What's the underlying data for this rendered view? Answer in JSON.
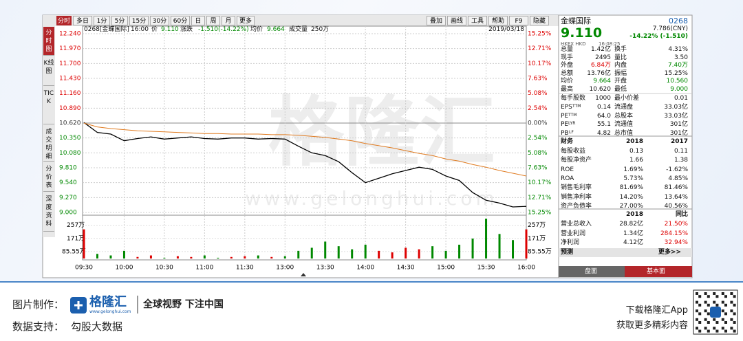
{
  "toolbar": {
    "tabs": [
      "分时",
      "多日",
      "1分",
      "5分",
      "15分",
      "30分",
      "60分",
      "日",
      "周",
      "月",
      "更多"
    ],
    "tools": [
      "叠加",
      "画线",
      "工具",
      "帮助",
      "F9",
      "隐藏"
    ]
  },
  "side_tabs": [
    "分时图",
    "K线图",
    "TICK",
    "成交明细",
    "分价表",
    "深度资料"
  ],
  "info": {
    "code": "0268[金蝶国际]",
    "time": "16:00",
    "price_label": "价",
    "price": "9.110",
    "change_label": "涨跌",
    "change": "-1.510(-14.22%)",
    "avg_label": "均价",
    "avg": "9.664",
    "vol_label": "成交量",
    "vol": "250万",
    "date": "2019/03/18"
  },
  "watermark": {
    "brand": "格隆汇",
    "site": "www.gelonghui.com"
  },
  "chart_data": {
    "type": "line",
    "x": [
      "09:30",
      "09:40",
      "09:50",
      "10:00",
      "10:10",
      "10:20",
      "10:30",
      "10:40",
      "10:50",
      "11:00",
      "11:10",
      "11:20",
      "11:30",
      "11:40",
      "11:50",
      "12:00",
      "13:10",
      "13:20",
      "13:30",
      "13:40",
      "13:50",
      "14:00",
      "14:10",
      "14:20",
      "14:30",
      "14:40",
      "14:50",
      "15:00",
      "15:10",
      "15:20",
      "15:30",
      "15:40",
      "15:50",
      "16:00"
    ],
    "series": [
      {
        "color": "#000000",
        "values": [
          10.63,
          10.45,
          10.42,
          10.3,
          10.34,
          10.37,
          10.33,
          10.35,
          10.37,
          10.34,
          10.33,
          10.35,
          10.35,
          10.33,
          10.34,
          10.33,
          10.2,
          10.08,
          10.03,
          9.92,
          9.72,
          9.54,
          9.62,
          9.7,
          9.76,
          9.82,
          9.78,
          9.66,
          9.58,
          9.36,
          9.22,
          9.17,
          9.1,
          9.11
        ]
      },
      {
        "color": "#e07b20",
        "values": [
          10.62,
          10.55,
          10.52,
          10.5,
          10.48,
          10.47,
          10.46,
          10.45,
          10.44,
          10.43,
          10.43,
          10.42,
          10.42,
          10.42,
          10.41,
          10.41,
          10.4,
          10.38,
          10.36,
          10.33,
          10.3,
          10.25,
          10.21,
          10.17,
          10.12,
          10.07,
          10.03,
          9.97,
          9.93,
          9.87,
          9.82,
          9.76,
          9.71,
          9.66
        ]
      }
    ],
    "volume": [
      230,
      70,
      60,
      90,
      50,
      60,
      45,
      55,
      50,
      60,
      45,
      50,
      55,
      60,
      50,
      55,
      90,
      110,
      150,
      120,
      100,
      130,
      90,
      80,
      110,
      100,
      120,
      90,
      130,
      170,
      300,
      200,
      160,
      230
    ],
    "xticks": [
      "09:30",
      "10:00",
      "10:30",
      "11:00",
      "11:30",
      "13:00",
      "13:30",
      "14:00",
      "14:30",
      "15:00",
      "15:30",
      "16:00"
    ],
    "ylim": [
      9.0,
      12.24
    ],
    "yticks": [
      {
        "value": 12.24,
        "label": "12.240"
      },
      {
        "value": 11.97,
        "label": "11.970"
      },
      {
        "value": 11.7,
        "label": "11.700"
      },
      {
        "value": 11.43,
        "label": "11.430"
      },
      {
        "value": 11.16,
        "label": "11.160"
      },
      {
        "value": 10.89,
        "label": "10.890"
      },
      {
        "value": 10.62,
        "label": "10.620"
      },
      {
        "value": 10.35,
        "label": "10.350"
      },
      {
        "value": 10.08,
        "label": "10.080"
      },
      {
        "value": 9.81,
        "label": "9.810"
      },
      {
        "value": 9.54,
        "label": "9.540"
      },
      {
        "value": 9.27,
        "label": "9.270"
      },
      {
        "value": 9.0,
        "label": "9.000"
      }
    ],
    "y2lim": [
      -15.25,
      15.25
    ],
    "y2ticks": [
      {
        "value": 15.25,
        "label": "15.25%"
      },
      {
        "value": 12.71,
        "label": "12.71%"
      },
      {
        "value": 10.17,
        "label": "10.17%"
      },
      {
        "value": 7.63,
        "label": "7.63%"
      },
      {
        "value": 5.08,
        "label": "5.08%"
      },
      {
        "value": 2.54,
        "label": "2.54%"
      },
      {
        "value": 0,
        "label": "0.00%"
      },
      {
        "value": -2.54,
        "label": "2.54%"
      },
      {
        "value": -5.08,
        "label": "5.08%"
      },
      {
        "value": -7.63,
        "label": "7.63%"
      },
      {
        "value": -10.17,
        "label": "10.17%"
      },
      {
        "value": -12.71,
        "label": "12.71%"
      },
      {
        "value": -15.25,
        "label": "15.25%"
      }
    ],
    "vlim": [
      40,
      300
    ],
    "vticks": [
      {
        "value": 257,
        "label": "257万"
      },
      {
        "value": 171,
        "label": "171万"
      },
      {
        "value": 85.55,
        "label": "85.55万"
      }
    ],
    "grid": true
  },
  "quote": {
    "name": "金蝶国际",
    "code": "0268",
    "price": "9.110",
    "cny": "7.786(CNY)",
    "market": "HKEX HKD",
    "time": "16:08:25",
    "change": "-14.22% (-1.510)",
    "rows": [
      [
        "总量",
        "1.42亿",
        "换手",
        "4.31%"
      ],
      [
        "现手",
        "2495",
        "量比",
        "3.50"
      ],
      [
        "外盘",
        "6.84万",
        "内盘",
        "7.40万"
      ],
      [
        "总额",
        "13.76亿",
        "振幅",
        "15.25%"
      ],
      [
        "均价",
        "9.664",
        "开盘",
        "10.560"
      ],
      [
        "最高",
        "10.620",
        "最低",
        "9.000"
      ],
      [
        "每手股数",
        "1000",
        "最小价差",
        "0.01"
      ]
    ],
    "ratios": [
      {
        "label": "EPS",
        "sup": "TTM",
        "value": "0.14",
        "label2": "流通盘",
        "value2": "33.03亿"
      },
      {
        "label": "PE",
        "sup": "TTM",
        "value": "64.0",
        "label2": "总股本",
        "value2": "33.03亿"
      },
      {
        "label": "PE",
        "sup": "LYR",
        "value": "55.1",
        "label2": "流通值",
        "value2": "301亿"
      },
      {
        "label": "PB",
        "sup": "LF",
        "value": "4.82",
        "label2": "总市值",
        "value2": "301亿"
      }
    ],
    "finance": {
      "header": [
        "财务",
        "2018",
        "2017"
      ],
      "rows": [
        [
          "每股收益",
          "0.13",
          "0.11"
        ],
        [
          "每股净资产",
          "1.66",
          "1.38"
        ],
        [
          "ROE",
          "1.69%",
          "-1.62%"
        ],
        [
          "ROA",
          "5.73%",
          "4.85%"
        ],
        [
          "销售毛利率",
          "81.69%",
          "81.46%"
        ],
        [
          "销售净利率",
          "14.20%",
          "13.64%"
        ],
        [
          "资产负债率",
          "27.00%",
          "40.56%"
        ]
      ]
    },
    "income": {
      "header": [
        "2018",
        "同比"
      ],
      "rows": [
        [
          "营业总收入",
          "28.82亿",
          "21.50%"
        ],
        [
          "营业利润",
          "1.34亿",
          "284.15%"
        ],
        [
          "净利润",
          "4.12亿",
          "32.94%"
        ]
      ]
    },
    "forecast": "预测",
    "more": "更多>>",
    "tabs": [
      "盘面",
      "基本面"
    ]
  },
  "footer": {
    "made_label": "图片制作：",
    "brand": "格隆汇",
    "site": "www.gelonghui.com",
    "slogan": "全球视野 下注中国",
    "data_label": "数据支持：",
    "data_source": "勾股大数据",
    "app": "下载格隆汇App",
    "more": "获取更多精彩内容"
  }
}
